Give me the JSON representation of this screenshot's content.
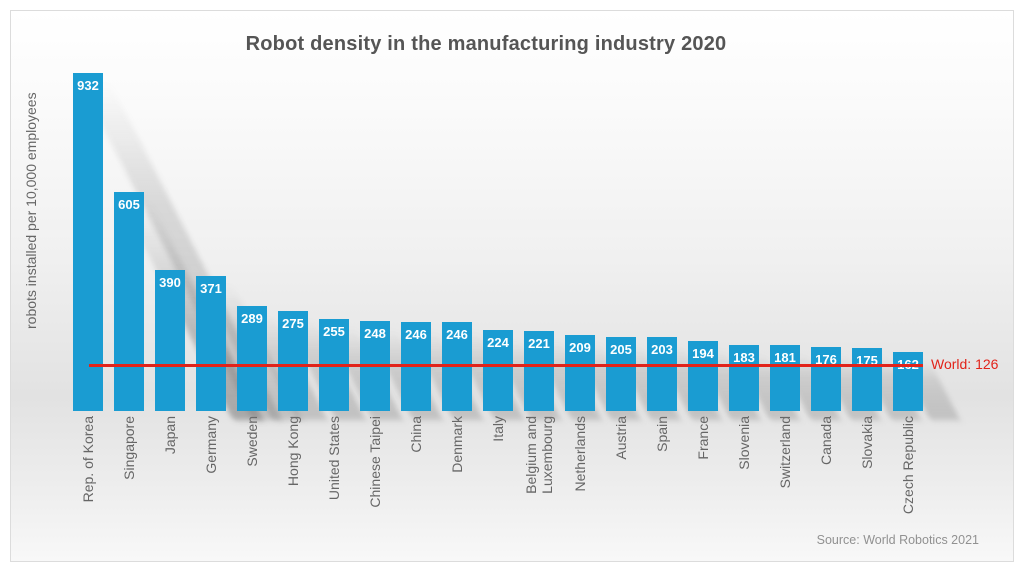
{
  "title": "Robot density in the manufacturing industry 2020",
  "y_axis_label": "robots installed per 10,000 employees",
  "source": "Source: World Robotics 2021",
  "world_line": {
    "label": "World: 126",
    "value": 126
  },
  "colors": {
    "bar": "#1A9CD2",
    "world_line": "#E2231A",
    "title_text": "#555555",
    "axis_text": "#666666",
    "value_text": "#FFFFFF",
    "source_text": "#919191"
  },
  "chart_data": {
    "type": "bar",
    "title": "Robot density in the manufacturing industry 2020",
    "xlabel": "",
    "ylabel": "robots installed per 10,000 employees",
    "categories": [
      "Rep. of Korea",
      "Singapore",
      "Japan",
      "Germany",
      "Sweden",
      "Hong Kong",
      "United States",
      "Chinese Taipei",
      "China",
      "Denmark",
      "Italy",
      "Belgium and\nLuxembourg",
      "Netherlands",
      "Austria",
      "Spain",
      "France",
      "Slovenia",
      "Switzerland",
      "Canada",
      "Slovakia",
      "Czech Republic"
    ],
    "values": [
      932,
      605,
      390,
      371,
      289,
      275,
      255,
      248,
      246,
      246,
      224,
      221,
      209,
      205,
      203,
      194,
      183,
      181,
      176,
      175,
      162
    ],
    "value_labels_shown": true,
    "annotations": [
      {
        "text": "World: 126",
        "y": 126,
        "type": "horizontal-line"
      }
    ],
    "ylim": [
      0,
      932
    ],
    "grid": false,
    "legend": "none",
    "source": "Source: World Robotics 2021"
  }
}
